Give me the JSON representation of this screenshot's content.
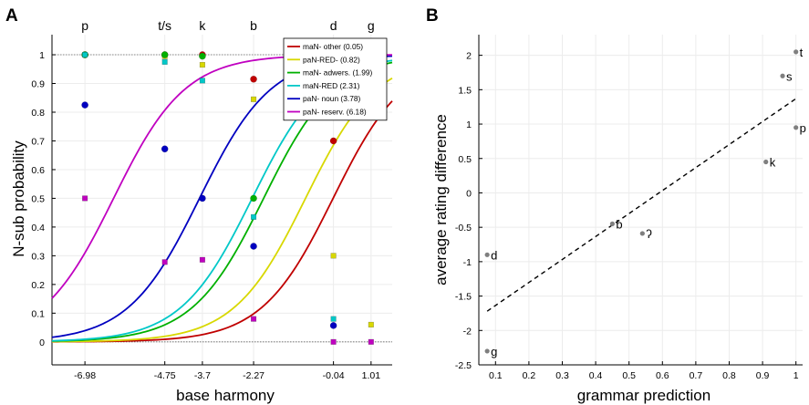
{
  "chart_data": [
    {
      "panel_label": "A",
      "type": "line",
      "xlabel": "base harmony",
      "ylabel": "N-sub probability",
      "xlim": [
        -7.9,
        1.6
      ],
      "ylim": [
        -0.08,
        1.07
      ],
      "xticks": [
        -6.98,
        -4.75,
        -3.7,
        -2.27,
        -0.04,
        1.01
      ],
      "yticks": [
        0,
        0.1,
        0.2,
        0.3,
        0.4,
        0.5,
        0.6,
        0.7,
        0.8,
        0.9,
        1
      ],
      "top_labels": [
        {
          "x": -6.98,
          "text": "p"
        },
        {
          "x": -4.75,
          "text": "t/s"
        },
        {
          "x": -3.7,
          "text": "k"
        },
        {
          "x": -2.27,
          "text": "b"
        },
        {
          "x": -0.04,
          "text": "d"
        },
        {
          "x": 1.01,
          "text": "g"
        }
      ],
      "reference_lines": [
        0,
        1
      ],
      "legend_position": "top-right",
      "grid": true,
      "series": [
        {
          "name": "maN- other (0.05)",
          "color": "#c00000",
          "marker": "circle",
          "offset": 0.05,
          "points": [
            {
              "x": -6.98,
              "y": 1.0
            },
            {
              "x": -4.75,
              "y": 1.0
            },
            {
              "x": -3.7,
              "y": 1.0
            },
            {
              "x": -2.27,
              "y": 0.915
            },
            {
              "x": -0.04,
              "y": 0.7
            }
          ]
        },
        {
          "name": "paN-RED- (0.82)",
          "color": "#d8d800",
          "marker": "square",
          "offset": 0.82,
          "points": [
            {
              "x": -4.75,
              "y": 0.995
            },
            {
              "x": -3.7,
              "y": 0.965
            },
            {
              "x": -2.27,
              "y": 0.845
            },
            {
              "x": -0.04,
              "y": 0.3
            },
            {
              "x": 1.01,
              "y": 0.06
            }
          ]
        },
        {
          "name": "maN- adwers. (1.99)",
          "color": "#00b000",
          "marker": "circle",
          "offset": 1.99,
          "points": [
            {
              "x": -6.98,
              "y": 1.0
            },
            {
              "x": -4.75,
              "y": 1.0
            },
            {
              "x": -3.7,
              "y": 0.995
            },
            {
              "x": -2.27,
              "y": 0.5
            }
          ]
        },
        {
          "name": "maN-RED (2.31)",
          "color": "#00c8c8",
          "marker": "square",
          "offset": 2.31,
          "points": [
            {
              "x": -6.98,
              "y": 1.0
            },
            {
              "x": -4.75,
              "y": 0.975
            },
            {
              "x": -3.7,
              "y": 0.91
            },
            {
              "x": -2.27,
              "y": 0.435
            },
            {
              "x": -0.04,
              "y": 0.08
            }
          ]
        },
        {
          "name": "paN- noun (3.78)",
          "color": "#0000c0",
          "marker": "circle",
          "offset": 3.78,
          "points": [
            {
              "x": -6.98,
              "y": 0.825
            },
            {
              "x": -4.75,
              "y": 0.672
            },
            {
              "x": -3.7,
              "y": 0.5
            },
            {
              "x": -2.27,
              "y": 0.333
            },
            {
              "x": -0.04,
              "y": 0.057
            }
          ]
        },
        {
          "name": "paN- reserv. (6.18)",
          "color": "#c000c0",
          "marker": "square",
          "offset": 6.18,
          "points": [
            {
              "x": -6.98,
              "y": 0.5
            },
            {
              "x": -4.75,
              "y": 0.278
            },
            {
              "x": -3.7,
              "y": 0.286
            },
            {
              "x": -2.27,
              "y": 0.08
            },
            {
              "x": -0.04,
              "y": 0.0
            },
            {
              "x": 1.01,
              "y": 0.0
            }
          ]
        }
      ]
    },
    {
      "panel_label": "B",
      "type": "scatter",
      "xlabel": "grammar prediction",
      "ylabel": "average rating difference",
      "xlim": [
        0.05,
        1.02
      ],
      "ylim": [
        -2.5,
        2.3
      ],
      "xticks": [
        0.1,
        0.2,
        0.3,
        0.4,
        0.5,
        0.6,
        0.7,
        0.8,
        0.9,
        1
      ],
      "yticks": [
        -2.5,
        -2,
        -1.5,
        -1,
        -0.5,
        0,
        0.5,
        1,
        1.5,
        2
      ],
      "grid": true,
      "fit_line": {
        "x": [
          0.075,
          1.0
        ],
        "y": [
          -1.72,
          1.37
        ],
        "style": "dashed"
      },
      "points": [
        {
          "x": 0.075,
          "y": -0.9,
          "label": "d"
        },
        {
          "x": 0.075,
          "y": -2.3,
          "label": "g"
        },
        {
          "x": 0.45,
          "y": -0.45,
          "label": "b"
        },
        {
          "x": 0.54,
          "y": -0.59,
          "label": "ʔ"
        },
        {
          "x": 0.91,
          "y": 0.45,
          "label": "k"
        },
        {
          "x": 0.96,
          "y": 1.7,
          "label": "s"
        },
        {
          "x": 1.0,
          "y": 2.05,
          "label": "t"
        },
        {
          "x": 1.0,
          "y": 0.95,
          "label": "p"
        }
      ]
    }
  ]
}
